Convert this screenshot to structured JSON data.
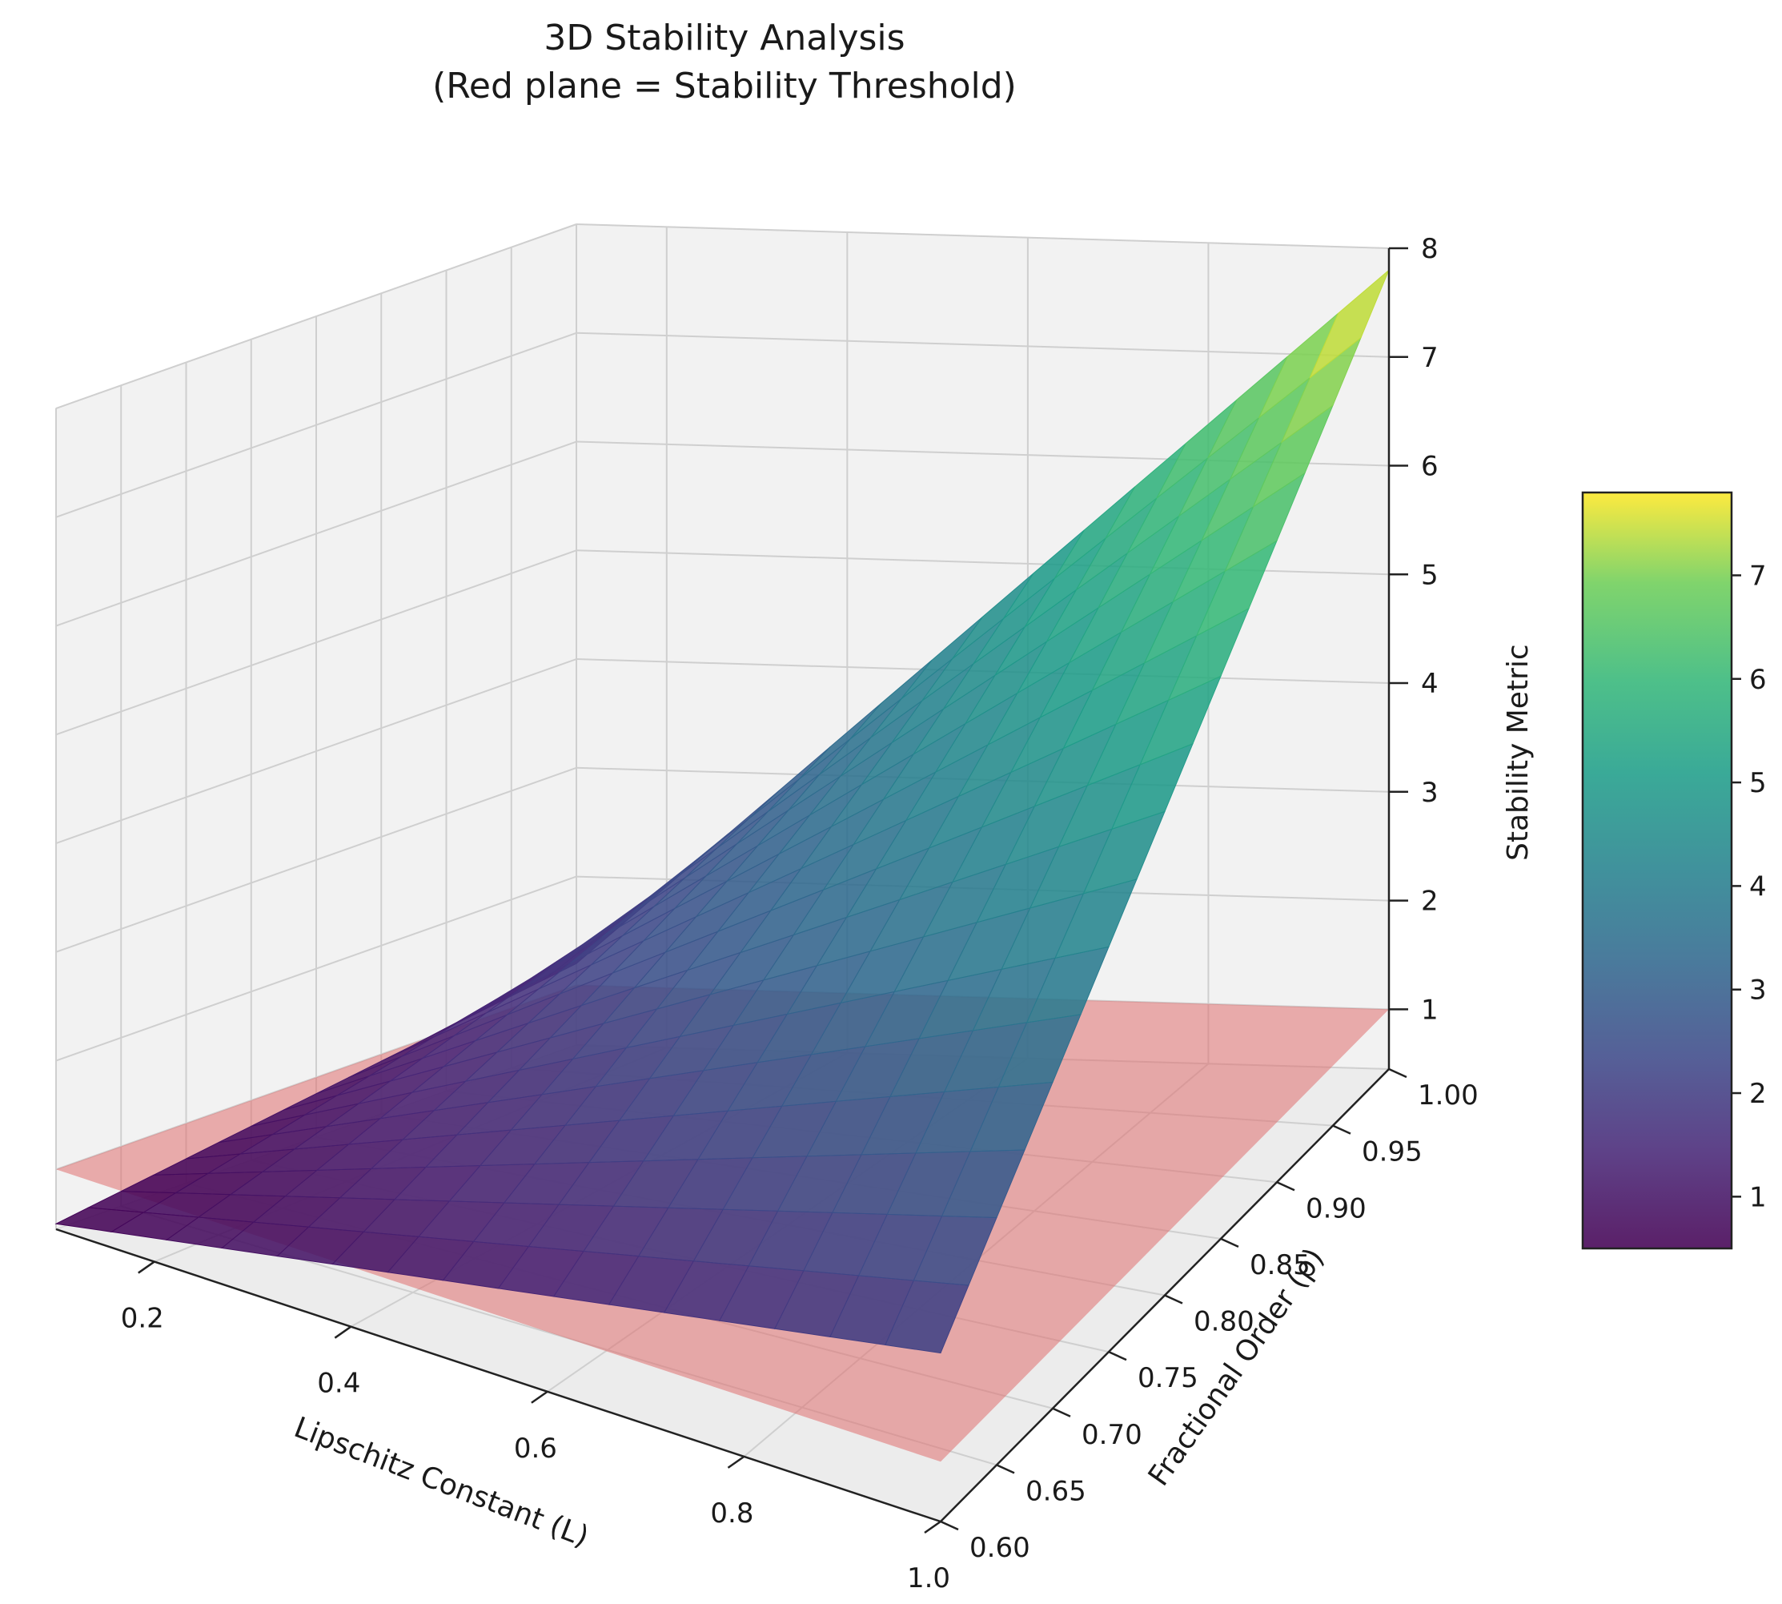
{
  "chart_data": {
    "type": "surface3d",
    "title": "3D Stability Analysis",
    "subtitle": "(Red plane = Stability Threshold)",
    "xlabel": "Lipschitz Constant (L)",
    "ylabel": "Fractional Order (ρ)",
    "zlabel": "Stability Metric",
    "xlim": [
      0.1,
      1.0
    ],
    "ylim": [
      0.6,
      1.0
    ],
    "zlim": [
      0.45,
      8.0
    ],
    "x_ticks": [
      "0.2",
      "0.4",
      "0.6",
      "0.8",
      "1.0"
    ],
    "y_ticks": [
      "0.60",
      "0.65",
      "0.70",
      "0.75",
      "0.80",
      "0.85",
      "0.90",
      "0.95",
      "1.00"
    ],
    "z_ticks": [
      "1",
      "2",
      "3",
      "4",
      "5",
      "6",
      "7",
      "8"
    ],
    "surface": {
      "colormap": "viridis",
      "corners": [
        {
          "x": 0.1,
          "y": 0.6,
          "z": 0.5
        },
        {
          "x": 1.0,
          "y": 0.6,
          "z": 2.0
        },
        {
          "x": 1.0,
          "y": 1.0,
          "z": 7.8
        },
        {
          "x": 0.1,
          "y": 1.0,
          "z": 1.2
        }
      ]
    },
    "threshold_plane": {
      "z": 1.0,
      "color": "#e07070"
    },
    "colorbar": {
      "ticks": [
        "1",
        "2",
        "3",
        "4",
        "5",
        "6",
        "7"
      ],
      "min": 0.5,
      "max": 7.8
    },
    "grid": true
  }
}
